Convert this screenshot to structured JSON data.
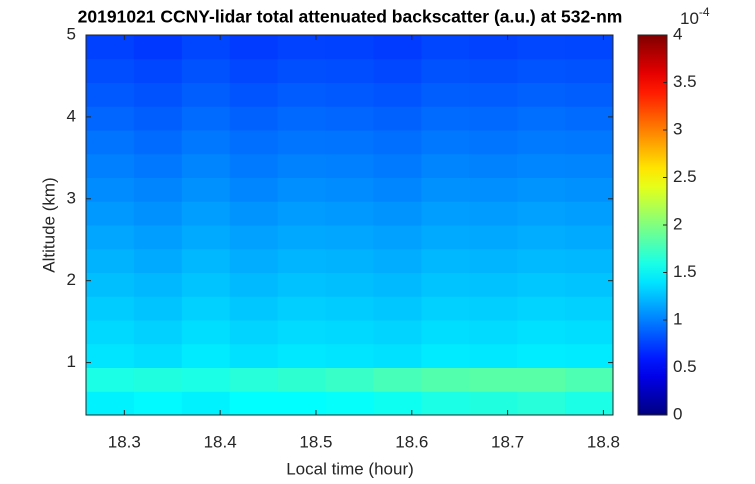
{
  "chart_data": {
    "type": "heatmap",
    "title": "20191021 CCNY-lidar total attenuated backscatter (a.u.) at 532-nm",
    "x_label": "Local time (hour)",
    "y_label": "Altitude (km)",
    "xlim": [
      18.26,
      18.81
    ],
    "xticks": [
      18.3,
      18.4,
      18.5,
      18.6,
      18.7,
      18.8
    ],
    "ylim": [
      0.36,
      5
    ],
    "yticks": [
      1,
      2,
      3,
      4,
      5
    ],
    "x_bins": [
      18.26,
      18.31,
      18.36,
      18.41,
      18.46,
      18.51,
      18.56,
      18.61,
      18.66,
      18.71,
      18.76,
      18.81
    ],
    "y_bins": [
      0.36,
      0.65,
      0.94,
      1.23,
      1.52,
      1.81,
      2.1,
      2.39,
      2.68,
      2.97,
      3.26,
      3.55,
      3.84,
      4.13,
      4.42,
      4.71,
      5.0
    ],
    "values": [
      [
        1.45,
        1.48,
        1.45,
        1.5,
        1.5,
        1.52,
        1.55,
        1.6,
        1.62,
        1.65,
        1.6
      ],
      [
        1.6,
        1.62,
        1.6,
        1.65,
        1.68,
        1.72,
        1.78,
        1.82,
        1.85,
        1.85,
        1.8
      ],
      [
        1.4,
        1.37,
        1.42,
        1.38,
        1.41,
        1.4,
        1.38,
        1.42,
        1.41,
        1.43,
        1.42
      ],
      [
        1.35,
        1.32,
        1.37,
        1.33,
        1.36,
        1.35,
        1.33,
        1.37,
        1.36,
        1.38,
        1.37
      ],
      [
        1.3,
        1.27,
        1.32,
        1.28,
        1.31,
        1.3,
        1.28,
        1.32,
        1.31,
        1.33,
        1.32
      ],
      [
        1.25,
        1.22,
        1.27,
        1.23,
        1.26,
        1.25,
        1.23,
        1.27,
        1.26,
        1.28,
        1.27
      ],
      [
        1.2,
        1.17,
        1.22,
        1.18,
        1.21,
        1.2,
        1.18,
        1.22,
        1.21,
        1.23,
        1.22
      ],
      [
        1.15,
        1.12,
        1.17,
        1.13,
        1.16,
        1.15,
        1.13,
        1.17,
        1.16,
        1.18,
        1.17
      ],
      [
        1.1,
        1.07,
        1.12,
        1.08,
        1.11,
        1.1,
        1.08,
        1.12,
        1.11,
        1.13,
        1.12
      ],
      [
        1.05,
        1.02,
        1.07,
        1.03,
        1.06,
        1.05,
        1.03,
        1.07,
        1.06,
        1.08,
        1.07
      ],
      [
        1.0,
        0.97,
        1.02,
        0.98,
        1.01,
        1.0,
        0.98,
        1.02,
        1.01,
        1.03,
        1.02
      ],
      [
        0.95,
        0.92,
        0.97,
        0.93,
        0.96,
        0.95,
        0.93,
        0.97,
        0.96,
        0.98,
        0.97
      ],
      [
        0.9,
        0.87,
        0.92,
        0.88,
        0.91,
        0.9,
        0.88,
        0.92,
        0.91,
        0.93,
        0.92
      ],
      [
        0.85,
        0.82,
        0.87,
        0.83,
        0.86,
        0.85,
        0.83,
        0.87,
        0.86,
        0.88,
        0.87
      ],
      [
        0.8,
        0.77,
        0.82,
        0.78,
        0.81,
        0.8,
        0.78,
        0.82,
        0.81,
        0.83,
        0.82
      ],
      [
        0.75,
        0.72,
        0.77,
        0.73,
        0.76,
        0.75,
        0.73,
        0.77,
        0.76,
        0.78,
        0.77
      ]
    ],
    "colormap": "jet",
    "clim": [
      0,
      4
    ],
    "cticks": [
      0,
      0.5,
      1,
      1.5,
      2,
      2.5,
      3,
      3.5,
      4
    ],
    "colorbar_multiplier_base": "10",
    "colorbar_multiplier_exponent": "-4"
  }
}
